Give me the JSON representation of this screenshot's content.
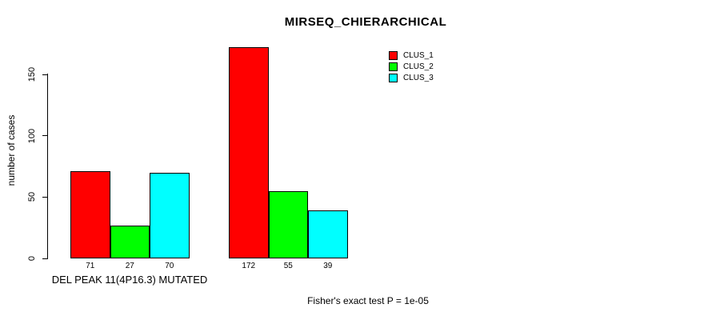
{
  "chart_data": {
    "type": "bar",
    "title": "MIRSEQ_CHIERARCHICAL",
    "ylabel": "number of cases",
    "xlabel": "",
    "ylim": [
      0,
      150
    ],
    "yticks": [
      0,
      50,
      100,
      150
    ],
    "grid": false,
    "legend_position": "top-right",
    "categories": [
      "DEL PEAK 11(4P16.3) MUTATED",
      ""
    ],
    "series": [
      {
        "name": "CLUS_1",
        "color": "#FF0000",
        "values": [
          71,
          172
        ]
      },
      {
        "name": "CLUS_2",
        "color": "#00FF00",
        "values": [
          27,
          55
        ]
      },
      {
        "name": "CLUS_3",
        "color": "#00FFFF",
        "values": [
          70,
          39
        ]
      }
    ],
    "bar_value_labels": [
      [
        "71",
        "27",
        "70"
      ],
      [
        "172",
        "55",
        "39"
      ]
    ],
    "annotation": "Fisher's exact test P = 1e-05"
  },
  "colors": {
    "background": "#FFFFFF",
    "axis": "#000000",
    "text": "#000000",
    "clus_1": "#FF0000",
    "clus_2": "#00FF00",
    "clus_3": "#00FFFF"
  }
}
